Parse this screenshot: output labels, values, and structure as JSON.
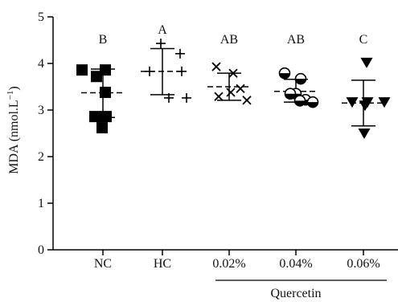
{
  "chart_data": {
    "type": "scatter",
    "ylabel": "MDA (nmol.L⁻¹)",
    "ylabel_parts": {
      "base": "MDA (nmol.L",
      "sup": "−1",
      "close": ")"
    },
    "ylim": [
      0,
      5
    ],
    "y_ticks": [
      0,
      1,
      2,
      3,
      4,
      5
    ],
    "y_tick_labels": [
      "0",
      "1",
      "2",
      "3",
      "4",
      "5"
    ],
    "categories": [
      "NC",
      "HC",
      "0.02%",
      "0.04%",
      "0.06%"
    ],
    "group_label": "Quercetin",
    "grid": false,
    "series": [
      {
        "category": "NC",
        "marker": "square",
        "letter": "B",
        "points": [
          3.86,
          3.86,
          3.72,
          3.38,
          2.86,
          2.86,
          2.62
        ],
        "mean": 3.37,
        "sd_upper": 3.88,
        "sd_lower": 2.84
      },
      {
        "category": "HC",
        "marker": "plus",
        "letter": "A",
        "points": [
          4.43,
          4.21,
          3.83,
          3.83,
          3.26,
          3.26
        ],
        "mean": 3.83,
        "sd_upper": 4.32,
        "sd_lower": 3.33
      },
      {
        "category": "0.02%",
        "marker": "cross",
        "letter": "AB",
        "points": [
          3.93,
          3.79,
          3.46,
          3.38,
          3.29,
          3.21
        ],
        "mean": 3.5,
        "sd_upper": 3.79,
        "sd_lower": 3.21
      },
      {
        "category": "0.04%",
        "marker": "half-circle",
        "letter": "AB",
        "points": [
          3.79,
          3.67,
          3.35,
          3.35,
          3.22,
          3.2,
          3.17
        ],
        "mean": 3.4,
        "sd_upper": 3.66,
        "sd_lower": 3.17
      },
      {
        "category": "0.06%",
        "marker": "triangle-down",
        "letter": "C",
        "points": [
          4.02,
          3.17,
          3.17,
          3.17,
          3.1,
          2.5
        ],
        "mean": 3.15,
        "sd_upper": 3.64,
        "sd_lower": 2.66
      }
    ]
  }
}
